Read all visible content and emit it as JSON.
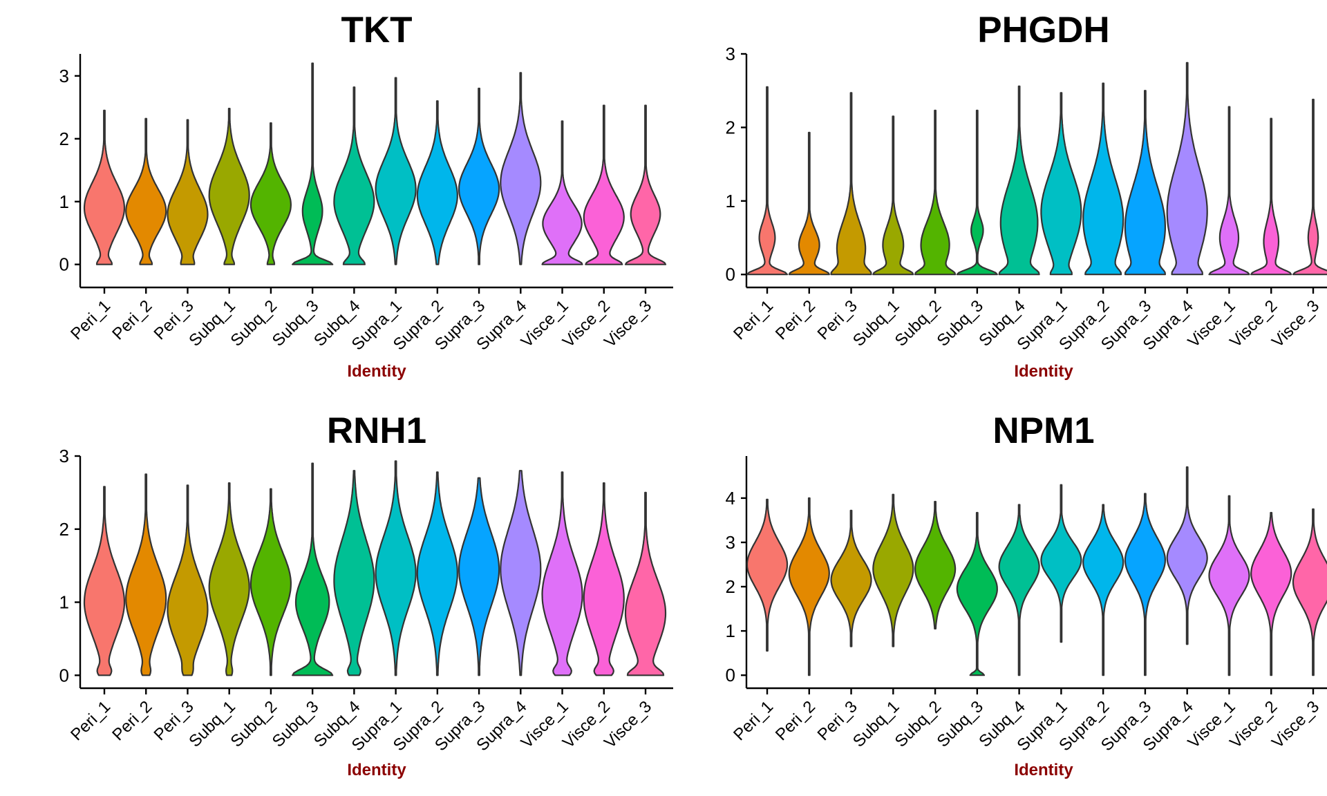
{
  "chart_data": [
    {
      "type": "violin",
      "title": "TKT",
      "xlabel": "Identity",
      "ylabel": "",
      "ylim": [
        -0.3,
        3.35
      ],
      "yticks": [
        0,
        1,
        2,
        3
      ],
      "categories": [
        "Peri_1",
        "Peri_2",
        "Peri_3",
        "Subq_1",
        "Subq_2",
        "Subq_3",
        "Subq_4",
        "Supra_1",
        "Supra_2",
        "Supra_3",
        "Supra_4",
        "Visce_1",
        "Visce_2",
        "Visce_3"
      ],
      "violins": [
        {
          "max": 2.45,
          "modes": [
            [
              0,
              0.3,
              0.07
            ],
            [
              0.9,
              1.0,
              0.4
            ]
          ]
        },
        {
          "max": 2.32,
          "modes": [
            [
              0,
              0.25,
              0.07
            ],
            [
              0.85,
              1.0,
              0.35
            ]
          ]
        },
        {
          "max": 2.3,
          "modes": [
            [
              0,
              0.2,
              0.07
            ],
            [
              0.8,
              1.0,
              0.4
            ]
          ]
        },
        {
          "max": 2.48,
          "modes": [
            [
              0,
              0.2,
              0.07
            ],
            [
              1.1,
              1.0,
              0.45
            ]
          ]
        },
        {
          "max": 2.25,
          "modes": [
            [
              0,
              0.15,
              0.07
            ],
            [
              0.95,
              1.0,
              0.35
            ]
          ]
        },
        {
          "max": 3.2,
          "modes": [
            [
              0,
              1.0,
              0.07
            ],
            [
              0.85,
              0.5,
              0.3
            ]
          ]
        },
        {
          "max": 2.82,
          "modes": [
            [
              0,
              0.45,
              0.08
            ],
            [
              1.0,
              1.0,
              0.45
            ]
          ]
        },
        {
          "max": 2.97,
          "modes": [
            [
              1.2,
              1.0,
              0.45
            ]
          ]
        },
        {
          "max": 2.6,
          "modes": [
            [
              1.1,
              1.0,
              0.45
            ]
          ]
        },
        {
          "max": 2.8,
          "modes": [
            [
              1.2,
              1.0,
              0.4
            ]
          ]
        },
        {
          "max": 3.05,
          "modes": [
            [
              1.3,
              1.0,
              0.5
            ]
          ]
        },
        {
          "max": 2.28,
          "modes": [
            [
              0,
              0.7,
              0.07
            ],
            [
              0.65,
              0.75,
              0.3
            ]
          ]
        },
        {
          "max": 2.53,
          "modes": [
            [
              0,
              0.65,
              0.07
            ],
            [
              0.75,
              0.8,
              0.35
            ]
          ]
        },
        {
          "max": 2.53,
          "modes": [
            [
              0,
              0.8,
              0.08
            ],
            [
              0.8,
              0.6,
              0.3
            ]
          ]
        }
      ]
    },
    {
      "type": "violin",
      "title": "PHGDH",
      "xlabel": "Identity",
      "ylabel": "",
      "ylim": [
        -0.12,
        3.0
      ],
      "yticks": [
        0,
        1,
        2,
        3
      ],
      "categories": [
        "Peri_1",
        "Peri_2",
        "Peri_3",
        "Subq_1",
        "Subq_2",
        "Subq_3",
        "Subq_4",
        "Supra_1",
        "Supra_2",
        "Supra_3",
        "Supra_4",
        "Visce_1",
        "Visce_2",
        "Visce_3"
      ],
      "violins": [
        {
          "max": 2.55,
          "modes": [
            [
              0,
              1.0,
              0.06
            ],
            [
              0.5,
              0.4,
              0.2
            ]
          ]
        },
        {
          "max": 1.93,
          "modes": [
            [
              0,
              1.0,
              0.06
            ],
            [
              0.4,
              0.55,
              0.2
            ]
          ]
        },
        {
          "max": 2.47,
          "modes": [
            [
              0,
              0.8,
              0.07
            ],
            [
              0.35,
              1.0,
              0.35
            ]
          ]
        },
        {
          "max": 2.15,
          "modes": [
            [
              0,
              1.0,
              0.06
            ],
            [
              0.4,
              0.6,
              0.25
            ]
          ]
        },
        {
          "max": 2.23,
          "modes": [
            [
              0,
              0.9,
              0.06
            ],
            [
              0.4,
              0.9,
              0.3
            ]
          ]
        },
        {
          "max": 2.23,
          "modes": [
            [
              0,
              1.0,
              0.06
            ],
            [
              0.6,
              0.3,
              0.15
            ]
          ]
        },
        {
          "max": 2.56,
          "modes": [
            [
              0,
              0.6,
              0.07
            ],
            [
              0.7,
              0.85,
              0.5
            ]
          ]
        },
        {
          "max": 2.47,
          "modes": [
            [
              0,
              0.3,
              0.06
            ],
            [
              0.85,
              1.0,
              0.5
            ]
          ]
        },
        {
          "max": 2.6,
          "modes": [
            [
              0,
              0.5,
              0.07
            ],
            [
              0.75,
              1.0,
              0.55
            ]
          ]
        },
        {
          "max": 2.5,
          "modes": [
            [
              0,
              0.5,
              0.07
            ],
            [
              0.65,
              1.0,
              0.55
            ]
          ]
        },
        {
          "max": 2.88,
          "modes": [
            [
              0,
              0.4,
              0.07
            ],
            [
              0.85,
              1.0,
              0.6
            ]
          ]
        },
        {
          "max": 2.28,
          "modes": [
            [
              0,
              1.0,
              0.06
            ],
            [
              0.5,
              0.5,
              0.25
            ]
          ]
        },
        {
          "max": 2.12,
          "modes": [
            [
              0,
              1.0,
              0.06
            ],
            [
              0.45,
              0.4,
              0.25
            ]
          ]
        },
        {
          "max": 2.38,
          "modes": [
            [
              0,
              1.0,
              0.06
            ],
            [
              0.5,
              0.25,
              0.2
            ]
          ]
        }
      ]
    },
    {
      "type": "violin",
      "title": "RNH1",
      "xlabel": "Identity",
      "ylabel": "",
      "ylim": [
        -0.12,
        3.0
      ],
      "yticks": [
        0,
        1,
        2,
        3
      ],
      "categories": [
        "Peri_1",
        "Peri_2",
        "Peri_3",
        "Subq_1",
        "Subq_2",
        "Subq_3",
        "Subq_4",
        "Supra_1",
        "Supra_2",
        "Supra_3",
        "Supra_4",
        "Visce_1",
        "Visce_2",
        "Visce_3"
      ],
      "violins": [
        {
          "max": 2.58,
          "modes": [
            [
              0.05,
              0.25,
              0.07
            ],
            [
              1.0,
              1.0,
              0.45
            ]
          ]
        },
        {
          "max": 2.75,
          "modes": [
            [
              0.05,
              0.15,
              0.07
            ],
            [
              1.05,
              1.0,
              0.45
            ]
          ]
        },
        {
          "max": 2.6,
          "modes": [
            [
              0.05,
              0.1,
              0.07
            ],
            [
              0.9,
              1.0,
              0.45
            ]
          ]
        },
        {
          "max": 2.63,
          "modes": [
            [
              0.05,
              0.12,
              0.07
            ],
            [
              1.2,
              1.0,
              0.45
            ]
          ]
        },
        {
          "max": 2.55,
          "modes": [
            [
              1.25,
              1.0,
              0.42
            ]
          ]
        },
        {
          "max": 2.9,
          "modes": [
            [
              0,
              0.65,
              0.08
            ],
            [
              1.0,
              0.55,
              0.35
            ]
          ]
        },
        {
          "max": 2.8,
          "modes": [
            [
              0.05,
              0.25,
              0.07
            ],
            [
              1.3,
              1.0,
              0.55
            ]
          ]
        },
        {
          "max": 2.93,
          "modes": [
            [
              1.4,
              1.0,
              0.5
            ]
          ]
        },
        {
          "max": 2.78,
          "modes": [
            [
              1.4,
              1.0,
              0.5
            ]
          ]
        },
        {
          "max": 2.7,
          "modes": [
            [
              1.45,
              1.0,
              0.5
            ]
          ]
        },
        {
          "max": 2.8,
          "modes": [
            [
              1.45,
              1.0,
              0.55
            ]
          ]
        },
        {
          "max": 2.78,
          "modes": [
            [
              0.05,
              0.35,
              0.07
            ],
            [
              1.1,
              1.0,
              0.5
            ]
          ]
        },
        {
          "max": 2.63,
          "modes": [
            [
              0.05,
              0.35,
              0.07
            ],
            [
              1.05,
              1.0,
              0.5
            ]
          ]
        },
        {
          "max": 2.5,
          "modes": [
            [
              0,
              0.55,
              0.08
            ],
            [
              0.85,
              0.75,
              0.45
            ]
          ]
        }
      ]
    },
    {
      "type": "violin",
      "title": "NPM1",
      "xlabel": "Identity",
      "ylabel": "",
      "ylim": [
        -0.2,
        4.95
      ],
      "yticks": [
        0,
        1,
        2,
        3,
        4
      ],
      "categories": [
        "Peri_1",
        "Peri_2",
        "Peri_3",
        "Subq_1",
        "Subq_2",
        "Subq_3",
        "Subq_4",
        "Supra_1",
        "Supra_2",
        "Supra_3",
        "Supra_4",
        "Visce_1",
        "Visce_2",
        "Visce_3"
      ],
      "violins": [
        {
          "max": 3.97,
          "min": 0.55,
          "modes": [
            [
              2.5,
              1.0,
              0.5
            ]
          ]
        },
        {
          "max": 4.0,
          "min": 0.0,
          "modes": [
            [
              2.3,
              1.0,
              0.5
            ]
          ]
        },
        {
          "max": 3.72,
          "min": 0.65,
          "modes": [
            [
              2.15,
              1.0,
              0.45
            ]
          ]
        },
        {
          "max": 4.08,
          "min": 0.65,
          "modes": [
            [
              2.4,
              1.0,
              0.55
            ]
          ]
        },
        {
          "max": 3.92,
          "min": 1.05,
          "modes": [
            [
              2.4,
              1.0,
              0.5
            ]
          ]
        },
        {
          "max": 3.67,
          "min": 0.0,
          "modes": [
            [
              0,
              0.35,
              0.06
            ],
            [
              1.95,
              1.0,
              0.45
            ]
          ]
        },
        {
          "max": 3.85,
          "min": 0.0,
          "modes": [
            [
              2.45,
              1.0,
              0.45
            ]
          ]
        },
        {
          "max": 4.3,
          "min": 0.75,
          "modes": [
            [
              2.6,
              1.0,
              0.4
            ]
          ]
        },
        {
          "max": 3.85,
          "min": 0.0,
          "modes": [
            [
              2.55,
              1.0,
              0.45
            ]
          ]
        },
        {
          "max": 4.1,
          "min": 0.0,
          "modes": [
            [
              2.6,
              1.0,
              0.5
            ]
          ]
        },
        {
          "max": 4.7,
          "min": 0.7,
          "modes": [
            [
              2.65,
              1.0,
              0.45
            ]
          ]
        },
        {
          "max": 4.05,
          "min": 0.0,
          "modes": [
            [
              2.25,
              1.0,
              0.45
            ]
          ]
        },
        {
          "max": 3.67,
          "min": 0.0,
          "modes": [
            [
              2.3,
              1.0,
              0.5
            ]
          ]
        },
        {
          "max": 3.75,
          "min": 0.0,
          "modes": [
            [
              2.1,
              1.0,
              0.5
            ]
          ]
        }
      ]
    }
  ],
  "series_colors": [
    "#F8766D",
    "#E38900",
    "#C49A00",
    "#99A800",
    "#53B400",
    "#00BC56",
    "#00C094",
    "#00BFC4",
    "#00B6EB",
    "#06A4FF",
    "#A58AFF",
    "#DF70F8",
    "#FB61D7",
    "#FF66A8"
  ],
  "axis_title_color": "#8B0000"
}
